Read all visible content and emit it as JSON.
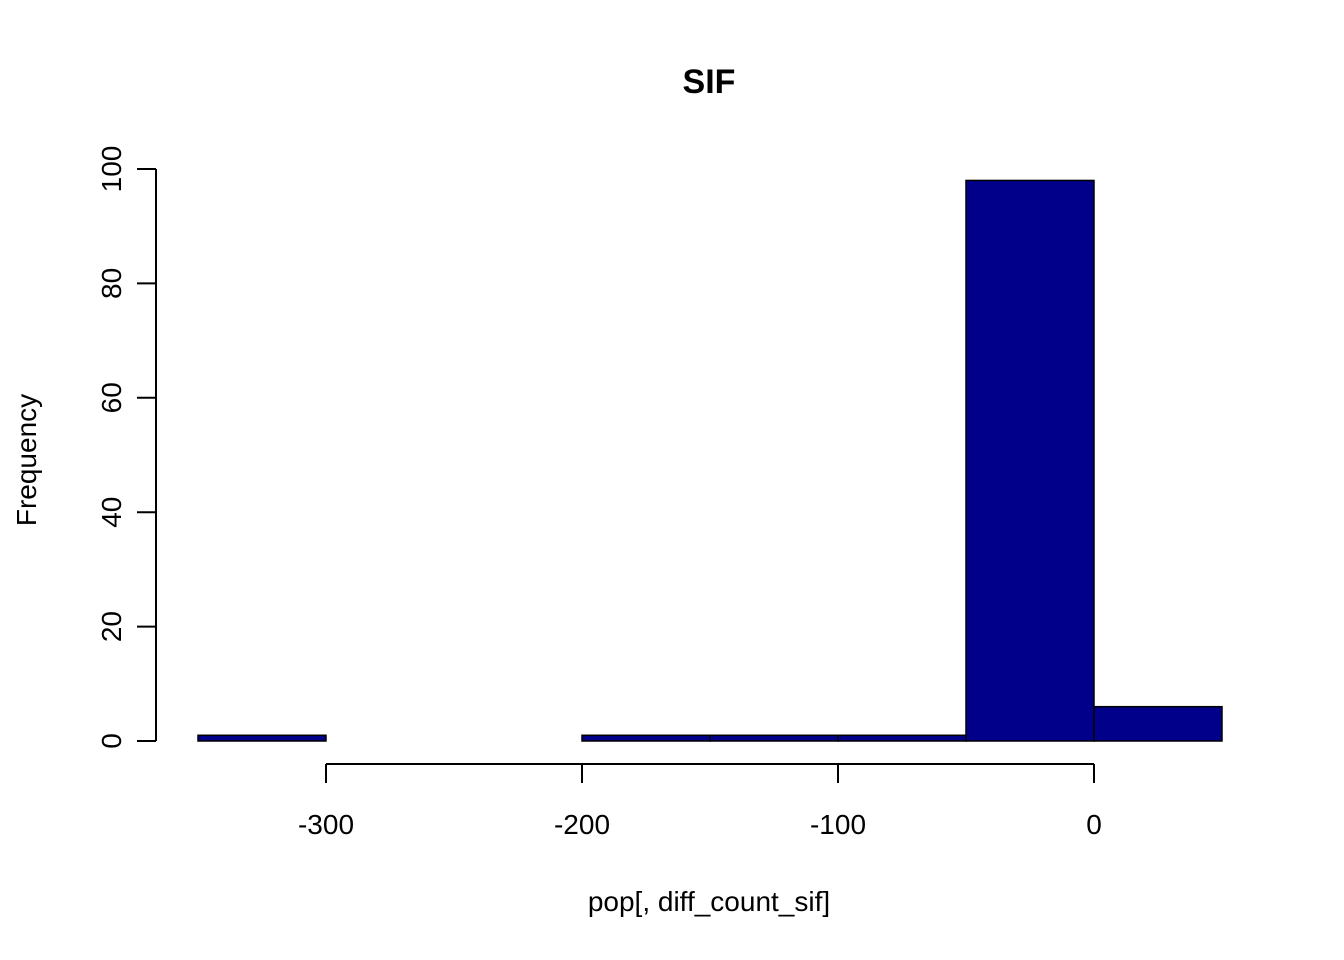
{
  "chart_data": {
    "type": "bar",
    "title": "SIF",
    "xlabel": "pop[, diff_count_sif]",
    "ylabel": "Frequency",
    "bin_edges": [
      -350,
      -300,
      -250,
      -200,
      -150,
      -100,
      -50,
      0,
      50
    ],
    "values": [
      1,
      0,
      0,
      1,
      1,
      1,
      98,
      6
    ],
    "xlim": [
      -350,
      50
    ],
    "ylim": [
      0,
      100
    ],
    "x_ticks": [
      -300,
      -200,
      -100,
      0
    ],
    "x_tick_labels": [
      "-300",
      "-200",
      "-100",
      "0"
    ],
    "y_ticks": [
      0,
      20,
      40,
      60,
      80,
      100
    ],
    "y_tick_labels": [
      "0",
      "20",
      "40",
      "60",
      "80",
      "100"
    ],
    "bar_color": "#00008B",
    "grid": false
  }
}
